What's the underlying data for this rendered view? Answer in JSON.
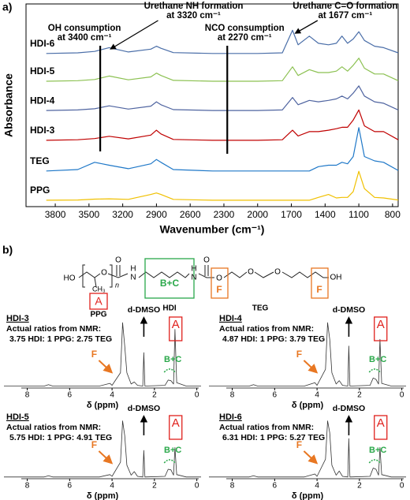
{
  "panel_labels": [
    "a)",
    "b)"
  ],
  "structure": {
    "labels": [
      "HO",
      "O",
      "CH₃",
      "n",
      "O",
      "N",
      "H",
      "N",
      "H",
      "O",
      "O",
      "O",
      "O",
      "OH",
      "A",
      "B+C",
      "F",
      "F",
      "PPG",
      "HDI",
      "TEG"
    ]
  },
  "chart_data": [
    {
      "type": "line",
      "xlabel": "Wavenumber (cm⁻¹)",
      "ylabel": "Absorbance",
      "xlim": [
        4060,
        750
      ],
      "ylim": [
        0,
        7
      ],
      "xticks": [
        3800,
        3500,
        3200,
        2900,
        2600,
        2300,
        2000,
        1700,
        1400,
        1100,
        800
      ],
      "x": [
        3880,
        3600,
        3450,
        3320,
        3150,
        2950,
        2900,
        2860,
        2750,
        2400,
        2000,
        1780,
        1690,
        1640,
        1540,
        1460,
        1370,
        1300,
        1250,
        1200,
        1150,
        1100,
        1050,
        960,
        880,
        750
      ],
      "series": [
        {
          "name": "HDI-6",
          "color": "#4a6ea8",
          "values": [
            5.29,
            5.31,
            5.36,
            5.49,
            5.34,
            5.44,
            5.54,
            5.47,
            5.32,
            5.29,
            5.29,
            5.31,
            6.09,
            5.59,
            5.89,
            5.64,
            5.59,
            5.64,
            5.89,
            5.64,
            5.79,
            6.04,
            5.74,
            5.54,
            5.49,
            5.31
          ]
        },
        {
          "name": "HDI-5",
          "color": "#8cc152",
          "values": [
            4.33,
            4.35,
            4.39,
            4.51,
            4.38,
            4.48,
            4.61,
            4.53,
            4.36,
            4.33,
            4.33,
            4.35,
            4.83,
            4.53,
            4.73,
            4.63,
            4.63,
            4.68,
            4.83,
            4.68,
            4.88,
            5.13,
            4.78,
            4.58,
            4.58,
            4.35
          ]
        },
        {
          "name": "HDI-4",
          "color": "#4f64a0",
          "values": [
            3.32,
            3.34,
            3.38,
            3.48,
            3.37,
            3.47,
            3.62,
            3.52,
            3.35,
            3.32,
            3.32,
            3.34,
            3.77,
            3.52,
            3.67,
            3.62,
            3.67,
            3.72,
            3.82,
            3.72,
            3.92,
            4.17,
            3.82,
            3.62,
            3.57,
            3.34
          ]
        },
        {
          "name": "HDI-3",
          "color": "#c00000",
          "values": [
            2.29,
            2.31,
            2.35,
            2.43,
            2.34,
            2.47,
            2.64,
            2.51,
            2.32,
            2.29,
            2.29,
            2.31,
            2.64,
            2.44,
            2.59,
            2.59,
            2.64,
            2.69,
            2.74,
            2.74,
            2.99,
            3.34,
            2.79,
            2.59,
            2.59,
            2.31
          ]
        },
        {
          "name": "TEG",
          "color": "#1f78c8",
          "values": [
            1.23,
            1.28,
            1.53,
            1.43,
            1.31,
            1.48,
            1.63,
            1.53,
            1.28,
            1.23,
            1.23,
            1.23,
            1.23,
            1.23,
            1.23,
            1.38,
            1.43,
            1.43,
            1.53,
            1.48,
            1.73,
            2.73,
            1.73,
            1.58,
            1.53,
            1.25
          ]
        },
        {
          "name": "PPG",
          "color": "#f0c000",
          "values": [
            0.22,
            0.23,
            0.26,
            0.27,
            0.25,
            0.42,
            0.47,
            0.42,
            0.25,
            0.22,
            0.22,
            0.22,
            0.22,
            0.22,
            0.22,
            0.32,
            0.42,
            0.3,
            0.32,
            0.32,
            0.52,
            1.22,
            0.62,
            0.32,
            0.3,
            0.23
          ]
        }
      ],
      "annotations": [
        {
          "text": [
            "OH consumption",
            "at 3400 cm⁻¹"
          ],
          "x": 3400,
          "marker": "line"
        },
        {
          "text": [
            "Urethane NH formation",
            "at 3320 cm⁻¹"
          ],
          "x": 3320,
          "marker": "pointer"
        },
        {
          "text": [
            "NCO consumption",
            "at 2270 cm⁻¹"
          ],
          "x": 2270,
          "marker": "line"
        },
        {
          "text": [
            "Urethane C=O formation",
            "at 1677 cm⁻¹"
          ],
          "x": 1677,
          "marker": "pointer"
        }
      ]
    },
    {
      "type": "line",
      "title": "HDI-3",
      "subtitle": [
        "Actual ratios from NMR:",
        "3.75 HDI: 1 PPG: 2.75 TEG"
      ],
      "xlabel": "δ (ppm)",
      "xlim": [
        9.1,
        -0.2
      ],
      "ylim": [
        -0.3,
        10
      ],
      "xticks": [
        8,
        6,
        4,
        2,
        0
      ],
      "x": [
        9.1,
        7.2,
        7.0,
        6.8,
        4.6,
        4.1,
        4.0,
        3.6,
        3.5,
        3.4,
        3.3,
        3.1,
        2.95,
        2.8,
        2.55,
        2.5,
        2.45,
        1.5,
        1.35,
        1.22,
        1.1,
        1.03,
        0.95,
        0.5,
        -0.2
      ],
      "series": [
        {
          "color": "#333333",
          "values": [
            0,
            0,
            0.2,
            0,
            0,
            0.4,
            0.1,
            2,
            9.5,
            6,
            2,
            0.3,
            0.6,
            0.1,
            0,
            5,
            0,
            0.1,
            0.9,
            0.8,
            0.3,
            8.5,
            0.5,
            0,
            0
          ]
        }
      ],
      "annotations": [
        {
          "text": "d-DMSO",
          "x": 2.5,
          "marker": "arrow-up",
          "color": "#000000"
        },
        {
          "text": "A",
          "x": 1.0,
          "marker": "box",
          "color": "#e0201c"
        },
        {
          "text": "B+C",
          "x": 1.28,
          "marker": "bracket",
          "color": "#2aa84a"
        },
        {
          "text": "F",
          "x": 4.1,
          "marker": "arrow",
          "color": "#e87722"
        }
      ]
    },
    {
      "type": "line",
      "title": "HDI-4",
      "subtitle": [
        "Actual ratios from NMR:",
        "4.87 HDI: 1 PPG: 3.79 TEG"
      ],
      "xlabel": "δ (ppm)",
      "xlim": [
        9.1,
        -0.2
      ],
      "ylim": [
        -0.3,
        10
      ],
      "xticks": [
        8,
        6,
        4,
        2,
        0
      ],
      "x": [
        9.1,
        7.2,
        7.0,
        6.8,
        4.6,
        4.1,
        4.0,
        3.6,
        3.5,
        3.4,
        3.3,
        3.1,
        2.95,
        2.8,
        2.55,
        2.5,
        2.45,
        1.5,
        1.35,
        1.22,
        1.1,
        1.03,
        0.95,
        0.5,
        -0.2
      ],
      "series": [
        {
          "color": "#333333",
          "values": [
            0,
            0,
            0.2,
            0,
            0,
            0.5,
            0.1,
            2.5,
            9.5,
            7,
            2,
            0.3,
            0.8,
            0.1,
            0,
            6,
            0,
            0.1,
            1.2,
            1,
            0.3,
            7,
            0.4,
            0,
            0
          ]
        }
      ],
      "annotations": [
        {
          "text": "d-DMSO",
          "x": 2.5,
          "marker": "arrow-up",
          "color": "#000000"
        },
        {
          "text": "A",
          "x": 1.0,
          "marker": "box",
          "color": "#e0201c"
        },
        {
          "text": "B+C",
          "x": 1.28,
          "marker": "bracket",
          "color": "#2aa84a"
        },
        {
          "text": "F",
          "x": 4.1,
          "marker": "arrow",
          "color": "#e87722"
        }
      ]
    },
    {
      "type": "line",
      "title": "HDI-5",
      "subtitle": [
        "Actual ratios from NMR:",
        "5.75 HDI: 1 PPG: 4.91 TEG"
      ],
      "xlabel": "δ (ppm)",
      "xlim": [
        9.1,
        -0.2
      ],
      "ylim": [
        -0.3,
        10
      ],
      "xticks": [
        8,
        6,
        4,
        2,
        0
      ],
      "x": [
        9.1,
        7.2,
        7.0,
        6.8,
        4.6,
        4.1,
        4.0,
        3.6,
        3.5,
        3.4,
        3.3,
        3.1,
        2.95,
        2.8,
        2.55,
        2.5,
        2.45,
        1.5,
        1.35,
        1.22,
        1.1,
        1.03,
        0.95,
        0.5,
        -0.2
      ],
      "series": [
        {
          "color": "#333333",
          "values": [
            0,
            0,
            0.2,
            0,
            0,
            0.4,
            0.1,
            2.5,
            9.5,
            7,
            2,
            0.3,
            0.9,
            0.1,
            0,
            4.5,
            0,
            0.1,
            1.3,
            1.2,
            0.3,
            5,
            0.4,
            0,
            0
          ]
        }
      ],
      "annotations": [
        {
          "text": "d-DMSO",
          "x": 2.5,
          "marker": "arrow-up",
          "color": "#000000"
        },
        {
          "text": "A",
          "x": 1.0,
          "marker": "box",
          "color": "#e0201c"
        },
        {
          "text": "B+C",
          "x": 1.28,
          "marker": "bracket",
          "color": "#2aa84a"
        },
        {
          "text": "F",
          "x": 4.1,
          "marker": "arrow",
          "color": "#e87722"
        }
      ]
    },
    {
      "type": "line",
      "title": "HDI-6",
      "subtitle": [
        "Actual ratios from NMR:",
        "6.31 HDI: 1 PPG: 5.27 TEG"
      ],
      "xlabel": "δ (ppm)",
      "xlim": [
        9.1,
        -0.2
      ],
      "ylim": [
        -0.3,
        10
      ],
      "xticks": [
        8,
        6,
        4,
        2,
        0
      ],
      "x": [
        9.1,
        7.2,
        7.0,
        6.8,
        4.6,
        4.1,
        4.0,
        3.6,
        3.5,
        3.4,
        3.3,
        3.1,
        2.95,
        2.8,
        2.55,
        2.5,
        2.45,
        1.5,
        1.35,
        1.22,
        1.1,
        1.03,
        0.95,
        0.5,
        -0.2
      ],
      "series": [
        {
          "color": "#333333",
          "values": [
            0,
            0,
            0.2,
            0,
            0,
            0.5,
            0.1,
            3,
            9.5,
            7.5,
            2,
            0.3,
            1.0,
            0.1,
            0,
            6.5,
            0,
            0.1,
            1.5,
            1.3,
            0.3,
            5,
            0.4,
            0,
            0
          ]
        }
      ],
      "annotations": [
        {
          "text": "d-DMSO",
          "x": 2.5,
          "marker": "arrow-up",
          "color": "#000000"
        },
        {
          "text": "A",
          "x": 1.0,
          "marker": "box",
          "color": "#e0201c"
        },
        {
          "text": "B+C",
          "x": 1.28,
          "marker": "bracket",
          "color": "#2aa84a"
        },
        {
          "text": "F",
          "x": 4.1,
          "marker": "arrow",
          "color": "#e87722"
        }
      ]
    }
  ]
}
